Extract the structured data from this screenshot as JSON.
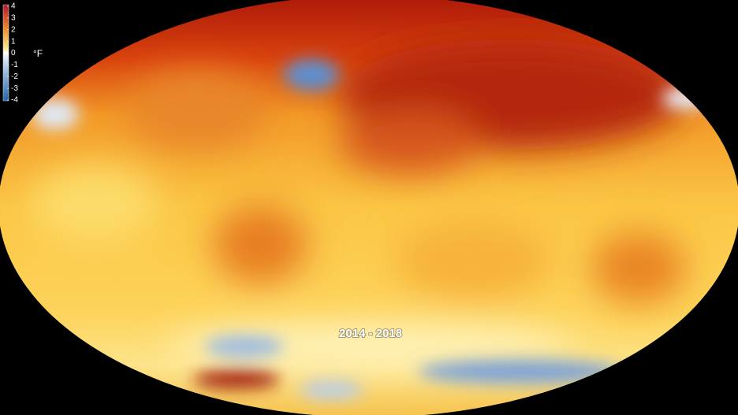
{
  "legend": {
    "ticks": [
      4,
      3,
      2,
      1,
      0,
      -1,
      -2,
      -3,
      -4
    ],
    "unit": "°F",
    "range": [
      -4,
      4
    ]
  },
  "caption": "2014 - 2018"
}
